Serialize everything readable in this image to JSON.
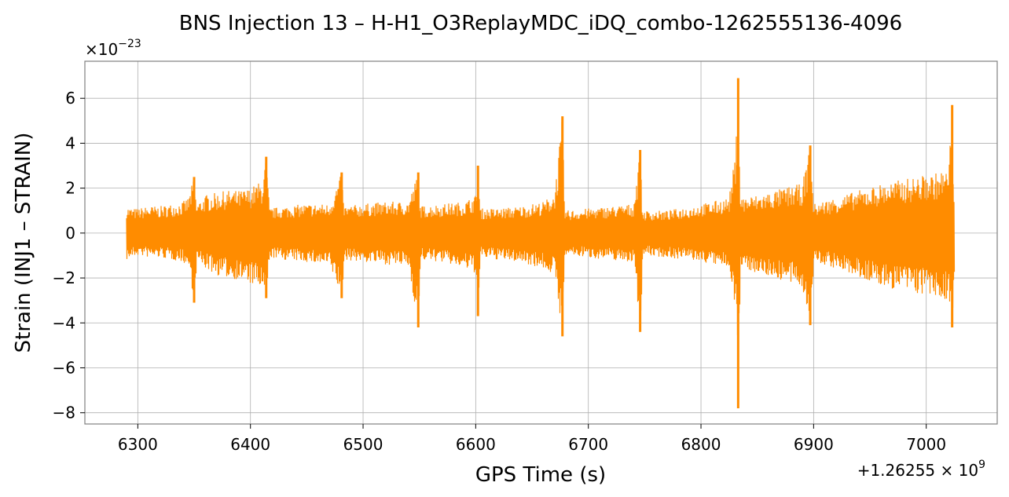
{
  "chart_data": {
    "type": "line",
    "title": "BNS Injection 13 – H-H1_O3ReplayMDC_iDQ_combo-1262555136-4096",
    "xlabel": "GPS Time (s)",
    "ylabel": "Strain (INJ1 – STRAIN)",
    "x_offset_label": "+1.26255 × 10",
    "x_offset_exponent": "9",
    "y_scale_label": "×10",
    "y_scale_exponent": "−23",
    "xlim": [
      6253,
      7063
    ],
    "ylim": [
      -8.5,
      7.65
    ],
    "x_ticks": [
      6300,
      6400,
      6500,
      6600,
      6700,
      6800,
      6900,
      7000
    ],
    "x_tick_labels": [
      "6300",
      "6400",
      "6500",
      "6600",
      "6700",
      "6800",
      "6900",
      "7000"
    ],
    "y_ticks": [
      6,
      4,
      2,
      0,
      -2,
      -4,
      -6,
      -8
    ],
    "y_tick_labels": [
      "6",
      "4",
      "2",
      "0",
      "−2",
      "−4",
      "−6",
      "−8"
    ],
    "grid": true,
    "line_color": "#ff8c00",
    "series": [
      {
        "x_start": 6290,
        "x_end": 7025,
        "envelope": [
          [
            6290,
            1.2,
            -1.2
          ],
          [
            6295,
            1.1,
            -1.1
          ],
          [
            6300,
            1.1,
            -1.0
          ],
          [
            6310,
            1.2,
            -1.1
          ],
          [
            6320,
            1.2,
            -1.1
          ],
          [
            6330,
            1.3,
            -1.2
          ],
          [
            6340,
            1.4,
            -1.3
          ],
          [
            6345,
            1.6,
            -1.6
          ],
          [
            6350,
            2.5,
            -3.1
          ],
          [
            6352,
            1.3,
            -1.3
          ],
          [
            6360,
            1.7,
            -1.6
          ],
          [
            6370,
            1.8,
            -1.9
          ],
          [
            6380,
            1.9,
            -2.0
          ],
          [
            6390,
            1.9,
            -2.1
          ],
          [
            6400,
            2.0,
            -2.3
          ],
          [
            6405,
            2.2,
            -2.4
          ],
          [
            6410,
            2.3,
            -2.6
          ],
          [
            6414,
            3.4,
            -2.9
          ],
          [
            6417,
            1.1,
            -1.1
          ],
          [
            6430,
            1.2,
            -1.2
          ],
          [
            6450,
            1.3,
            -1.3
          ],
          [
            6470,
            1.3,
            -1.5
          ],
          [
            6481,
            2.7,
            -2.9
          ],
          [
            6483,
            1.2,
            -1.2
          ],
          [
            6500,
            1.3,
            -1.3
          ],
          [
            6520,
            1.4,
            -1.4
          ],
          [
            6540,
            1.4,
            -1.5
          ],
          [
            6549,
            2.7,
            -4.2
          ],
          [
            6551,
            1.2,
            -1.2
          ],
          [
            6570,
            1.3,
            -1.3
          ],
          [
            6590,
            1.4,
            -1.6
          ],
          [
            6600,
            1.7,
            -1.8
          ],
          [
            6602,
            3.0,
            -3.7
          ],
          [
            6604,
            1.1,
            -1.1
          ],
          [
            6620,
            1.1,
            -1.2
          ],
          [
            6640,
            1.2,
            -1.3
          ],
          [
            6660,
            1.4,
            -1.6
          ],
          [
            6670,
            1.8,
            -1.9
          ],
          [
            6677,
            5.2,
            -4.6
          ],
          [
            6679,
            1.0,
            -1.0
          ],
          [
            6700,
            1.1,
            -1.1
          ],
          [
            6720,
            1.2,
            -1.2
          ],
          [
            6740,
            1.3,
            -1.3
          ],
          [
            6746,
            3.7,
            -4.4
          ],
          [
            6748,
            1.0,
            -1.0
          ],
          [
            6770,
            1.0,
            -1.1
          ],
          [
            6790,
            1.2,
            -1.2
          ],
          [
            6810,
            1.4,
            -1.4
          ],
          [
            6825,
            1.6,
            -1.6
          ],
          [
            6828,
            2.6,
            -2.5
          ],
          [
            6831,
            3.8,
            -3.6
          ],
          [
            6833,
            6.9,
            -7.8
          ],
          [
            6835,
            1.6,
            -1.5
          ],
          [
            6850,
            1.7,
            -1.8
          ],
          [
            6865,
            1.9,
            -2.0
          ],
          [
            6880,
            2.1,
            -2.3
          ],
          [
            6890,
            2.2,
            -2.5
          ],
          [
            6897,
            3.9,
            -4.1
          ],
          [
            6900,
            1.3,
            -1.3
          ],
          [
            6920,
            1.6,
            -1.6
          ],
          [
            6940,
            1.9,
            -2.0
          ],
          [
            6960,
            2.2,
            -2.4
          ],
          [
            6980,
            2.4,
            -2.6
          ],
          [
            7000,
            2.6,
            -2.8
          ],
          [
            7010,
            2.7,
            -3.0
          ],
          [
            7020,
            2.9,
            -3.0
          ],
          [
            7023,
            5.7,
            -4.2
          ],
          [
            7025,
            1.4,
            -1.5
          ]
        ]
      }
    ]
  }
}
